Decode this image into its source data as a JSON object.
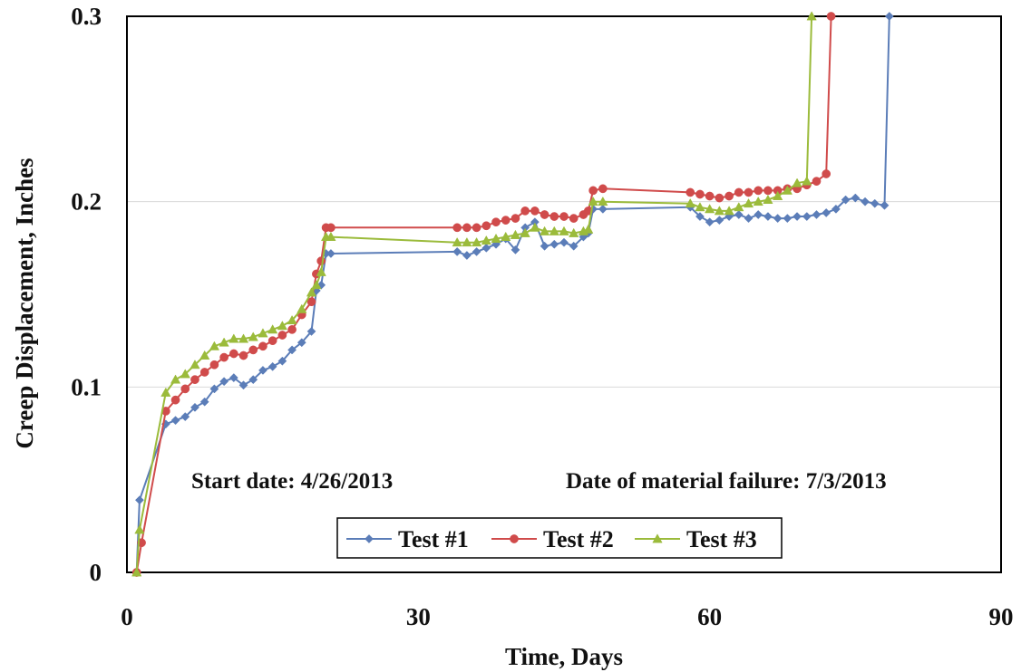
{
  "chart_data": {
    "type": "line",
    "title": "",
    "xlabel": "Time, Days",
    "ylabel": "Creep Displacement, Inches",
    "xlim": [
      0,
      90
    ],
    "ylim": [
      0,
      0.3
    ],
    "x_ticks": [
      0,
      30,
      60,
      90
    ],
    "y_ticks": [
      0,
      0.1,
      0.2,
      0.3
    ],
    "x_tick_labels": [
      "0",
      "30",
      "60",
      "90"
    ],
    "y_tick_labels": [
      "0",
      "0.1",
      "0.2",
      "0.3"
    ],
    "grid": "horizontal",
    "legend_position": "bottom-center",
    "annotations": {
      "start": "Start date: 4/26/2013",
      "failure": "Date of material failure: 7/3/2013"
    },
    "series": [
      {
        "name": "Test #1",
        "color": "#5B7DB8",
        "marker": "diamond",
        "points": [
          [
            1,
            0
          ],
          [
            1.3,
            0.039
          ],
          [
            4,
            0.08
          ],
          [
            5,
            0.082
          ],
          [
            6,
            0.084
          ],
          [
            7,
            0.089
          ],
          [
            8,
            0.092
          ],
          [
            9,
            0.099
          ],
          [
            10,
            0.103
          ],
          [
            11,
            0.105
          ],
          [
            12,
            0.101
          ],
          [
            13,
            0.104
          ],
          [
            14,
            0.109
          ],
          [
            15,
            0.111
          ],
          [
            16,
            0.114
          ],
          [
            17,
            0.12
          ],
          [
            18,
            0.124
          ],
          [
            19,
            0.13
          ],
          [
            19.5,
            0.152
          ],
          [
            20,
            0.155
          ],
          [
            20.5,
            0.172
          ],
          [
            21,
            0.172
          ],
          [
            34,
            0.173
          ],
          [
            35,
            0.171
          ],
          [
            36,
            0.173
          ],
          [
            37,
            0.175
          ],
          [
            38,
            0.177
          ],
          [
            39,
            0.18
          ],
          [
            40,
            0.174
          ],
          [
            41,
            0.186
          ],
          [
            42,
            0.189
          ],
          [
            43,
            0.176
          ],
          [
            44,
            0.177
          ],
          [
            45,
            0.178
          ],
          [
            46,
            0.176
          ],
          [
            47,
            0.181
          ],
          [
            47.5,
            0.183
          ],
          [
            48,
            0.196
          ],
          [
            49,
            0.196
          ],
          [
            58,
            0.197
          ],
          [
            59,
            0.192
          ],
          [
            60,
            0.189
          ],
          [
            61,
            0.19
          ],
          [
            62,
            0.192
          ],
          [
            63,
            0.193
          ],
          [
            64,
            0.191
          ],
          [
            65,
            0.193
          ],
          [
            66,
            0.192
          ],
          [
            67,
            0.191
          ],
          [
            68,
            0.191
          ],
          [
            69,
            0.192
          ],
          [
            70,
            0.192
          ],
          [
            71,
            0.193
          ],
          [
            72,
            0.194
          ],
          [
            73,
            0.196
          ],
          [
            74,
            0.201
          ],
          [
            75,
            0.202
          ],
          [
            76,
            0.2
          ],
          [
            77,
            0.199
          ],
          [
            78,
            0.198
          ],
          [
            78.5,
            0.3
          ]
        ]
      },
      {
        "name": "Test #2",
        "color": "#D04B4B",
        "marker": "circle",
        "points": [
          [
            1,
            0
          ],
          [
            1.5,
            0.016
          ],
          [
            4,
            0.087
          ],
          [
            5,
            0.093
          ],
          [
            6,
            0.099
          ],
          [
            7,
            0.104
          ],
          [
            8,
            0.108
          ],
          [
            9,
            0.112
          ],
          [
            10,
            0.116
          ],
          [
            11,
            0.118
          ],
          [
            12,
            0.117
          ],
          [
            13,
            0.12
          ],
          [
            14,
            0.122
          ],
          [
            15,
            0.125
          ],
          [
            16,
            0.128
          ],
          [
            17,
            0.131
          ],
          [
            18,
            0.139
          ],
          [
            19,
            0.146
          ],
          [
            19.5,
            0.161
          ],
          [
            20,
            0.168
          ],
          [
            20.5,
            0.186
          ],
          [
            21,
            0.186
          ],
          [
            34,
            0.186
          ],
          [
            35,
            0.186
          ],
          [
            36,
            0.186
          ],
          [
            37,
            0.187
          ],
          [
            38,
            0.189
          ],
          [
            39,
            0.19
          ],
          [
            40,
            0.191
          ],
          [
            41,
            0.195
          ],
          [
            42,
            0.195
          ],
          [
            43,
            0.193
          ],
          [
            44,
            0.192
          ],
          [
            45,
            0.192
          ],
          [
            46,
            0.191
          ],
          [
            47,
            0.193
          ],
          [
            47.5,
            0.195
          ],
          [
            48,
            0.206
          ],
          [
            49,
            0.207
          ],
          [
            58,
            0.205
          ],
          [
            59,
            0.204
          ],
          [
            60,
            0.203
          ],
          [
            61,
            0.202
          ],
          [
            62,
            0.203
          ],
          [
            63,
            0.205
          ],
          [
            64,
            0.205
          ],
          [
            65,
            0.206
          ],
          [
            66,
            0.206
          ],
          [
            67,
            0.206
          ],
          [
            68,
            0.207
          ],
          [
            69,
            0.207
          ],
          [
            70,
            0.209
          ],
          [
            71,
            0.211
          ],
          [
            72,
            0.215
          ],
          [
            72.5,
            0.3
          ]
        ]
      },
      {
        "name": "Test #3",
        "color": "#9BBB3B",
        "marker": "triangle",
        "points": [
          [
            1,
            0
          ],
          [
            1.3,
            0.023
          ],
          [
            4,
            0.097
          ],
          [
            5,
            0.104
          ],
          [
            6,
            0.107
          ],
          [
            7,
            0.112
          ],
          [
            8,
            0.117
          ],
          [
            9,
            0.122
          ],
          [
            10,
            0.124
          ],
          [
            11,
            0.126
          ],
          [
            12,
            0.126
          ],
          [
            13,
            0.127
          ],
          [
            14,
            0.129
          ],
          [
            15,
            0.131
          ],
          [
            16,
            0.133
          ],
          [
            17,
            0.136
          ],
          [
            18,
            0.142
          ],
          [
            19,
            0.151
          ],
          [
            19.5,
            0.155
          ],
          [
            20,
            0.162
          ],
          [
            20.5,
            0.181
          ],
          [
            21,
            0.181
          ],
          [
            34,
            0.178
          ],
          [
            35,
            0.178
          ],
          [
            36,
            0.178
          ],
          [
            37,
            0.179
          ],
          [
            38,
            0.18
          ],
          [
            39,
            0.181
          ],
          [
            40,
            0.182
          ],
          [
            41,
            0.183
          ],
          [
            42,
            0.186
          ],
          [
            43,
            0.184
          ],
          [
            44,
            0.184
          ],
          [
            45,
            0.184
          ],
          [
            46,
            0.183
          ],
          [
            47,
            0.184
          ],
          [
            47.5,
            0.185
          ],
          [
            48,
            0.2
          ],
          [
            49,
            0.2
          ],
          [
            58,
            0.199
          ],
          [
            59,
            0.197
          ],
          [
            60,
            0.196
          ],
          [
            61,
            0.195
          ],
          [
            62,
            0.195
          ],
          [
            63,
            0.197
          ],
          [
            64,
            0.199
          ],
          [
            65,
            0.2
          ],
          [
            66,
            0.201
          ],
          [
            67,
            0.203
          ],
          [
            68,
            0.206
          ],
          [
            69,
            0.21
          ],
          [
            70,
            0.211
          ],
          [
            70.5,
            0.3
          ]
        ]
      }
    ]
  }
}
